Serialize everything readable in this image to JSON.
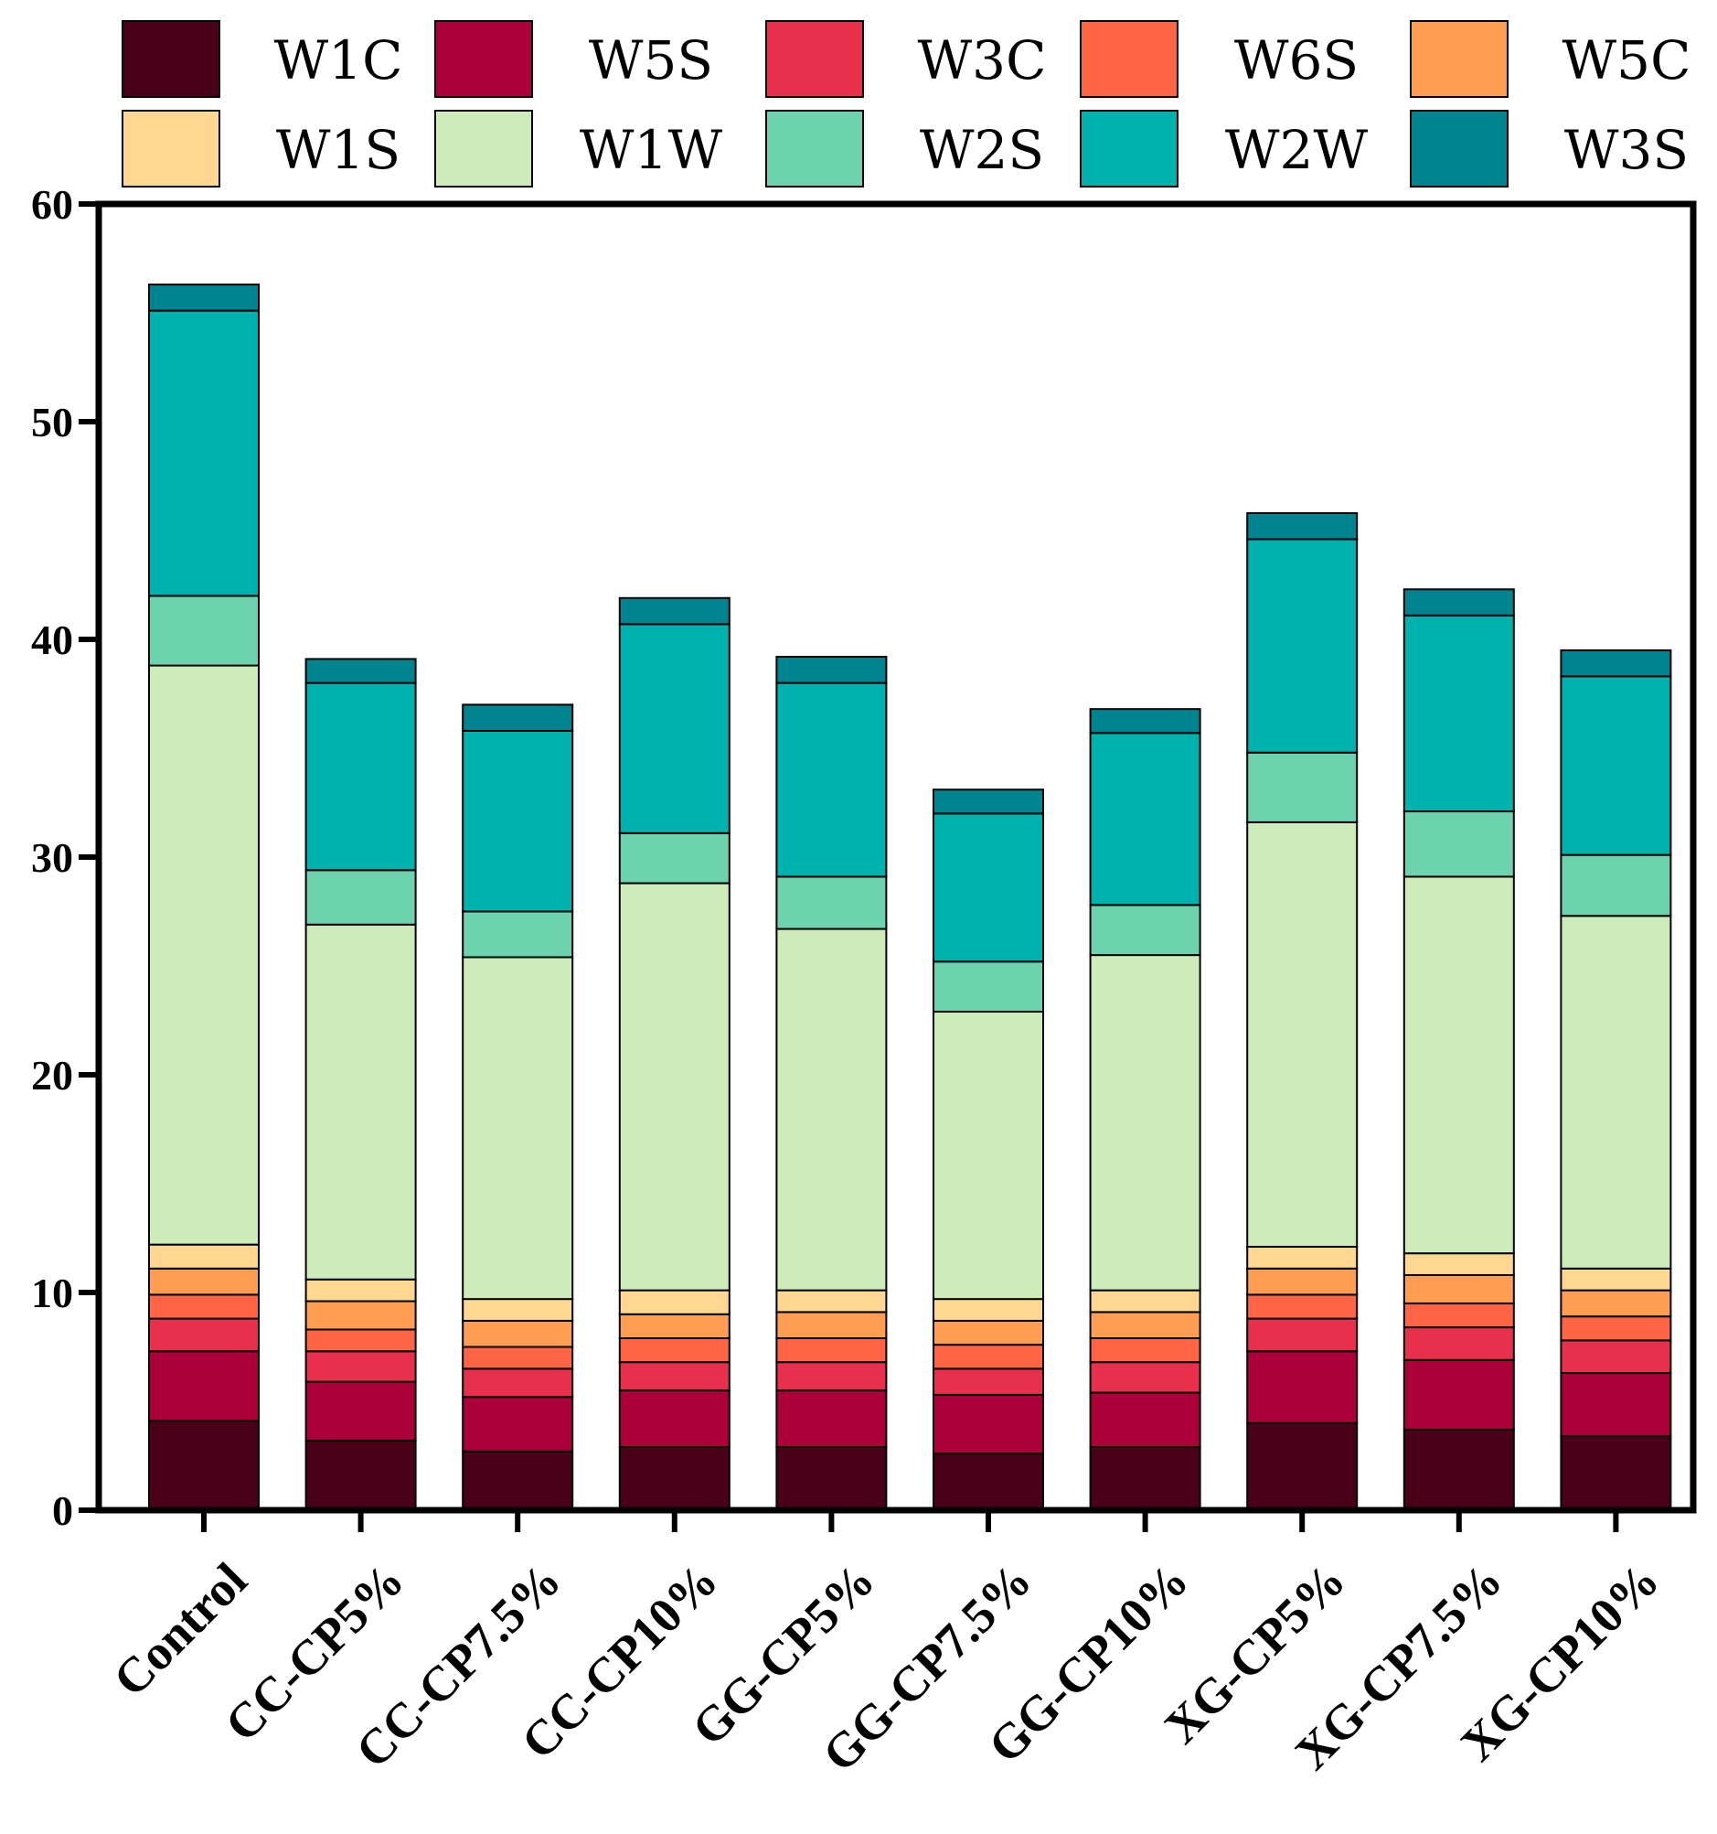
{
  "chart_data": {
    "type": "bar",
    "stacked": true,
    "title": "",
    "xlabel": "",
    "ylabel": "",
    "ylim": [
      0,
      60
    ],
    "yticks": [
      0,
      10,
      20,
      30,
      40,
      50,
      60
    ],
    "legend_position": "top",
    "categories": [
      "Control",
      "CC-CP5%",
      "CC-CP7.5%",
      "CC-CP10%",
      "GG-CP5%",
      "GG-CP7.5%",
      "GG-CP10%",
      "XG-CP5%",
      "XG-CP7.5%",
      "XG-CP10%"
    ],
    "series": [
      {
        "name": "W1C",
        "color": "#4a0018",
        "values": [
          4.1,
          3.2,
          2.7,
          2.9,
          2.9,
          2.6,
          2.9,
          4.0,
          3.7,
          3.4
        ]
      },
      {
        "name": "W5S",
        "color": "#ab003a",
        "values": [
          3.2,
          2.7,
          2.5,
          2.6,
          2.6,
          2.7,
          2.5,
          3.3,
          3.2,
          2.9
        ]
      },
      {
        "name": "W3C",
        "color": "#e8304d",
        "values": [
          1.5,
          1.4,
          1.3,
          1.3,
          1.3,
          1.2,
          1.4,
          1.5,
          1.5,
          1.5
        ]
      },
      {
        "name": "W6S",
        "color": "#ff6444",
        "values": [
          1.1,
          1.0,
          1.0,
          1.1,
          1.1,
          1.1,
          1.1,
          1.1,
          1.1,
          1.1
        ]
      },
      {
        "name": "W5C",
        "color": "#ff9d53",
        "values": [
          1.2,
          1.3,
          1.2,
          1.1,
          1.2,
          1.1,
          1.2,
          1.2,
          1.3,
          1.2
        ]
      },
      {
        "name": "W1S",
        "color": "#ffd790",
        "values": [
          1.1,
          1.0,
          1.0,
          1.1,
          1.0,
          1.0,
          1.0,
          1.0,
          1.0,
          1.0
        ]
      },
      {
        "name": "W1W",
        "color": "#cdecba",
        "values": [
          26.6,
          16.3,
          15.7,
          18.7,
          16.6,
          13.2,
          15.4,
          19.5,
          17.3,
          16.2
        ]
      },
      {
        "name": "W2S",
        "color": "#6dd3ae",
        "values": [
          3.2,
          2.5,
          2.1,
          2.3,
          2.4,
          2.3,
          2.3,
          3.2,
          3.0,
          2.8
        ]
      },
      {
        "name": "W2W",
        "color": "#00b2ad",
        "values": [
          13.1,
          8.6,
          8.3,
          9.6,
          8.9,
          6.8,
          7.9,
          9.8,
          9.0,
          8.2
        ]
      },
      {
        "name": "W3S",
        "color": "#008490",
        "values": [
          1.2,
          1.1,
          1.2,
          1.2,
          1.2,
          1.1,
          1.1,
          1.2,
          1.2,
          1.2
        ]
      }
    ]
  }
}
